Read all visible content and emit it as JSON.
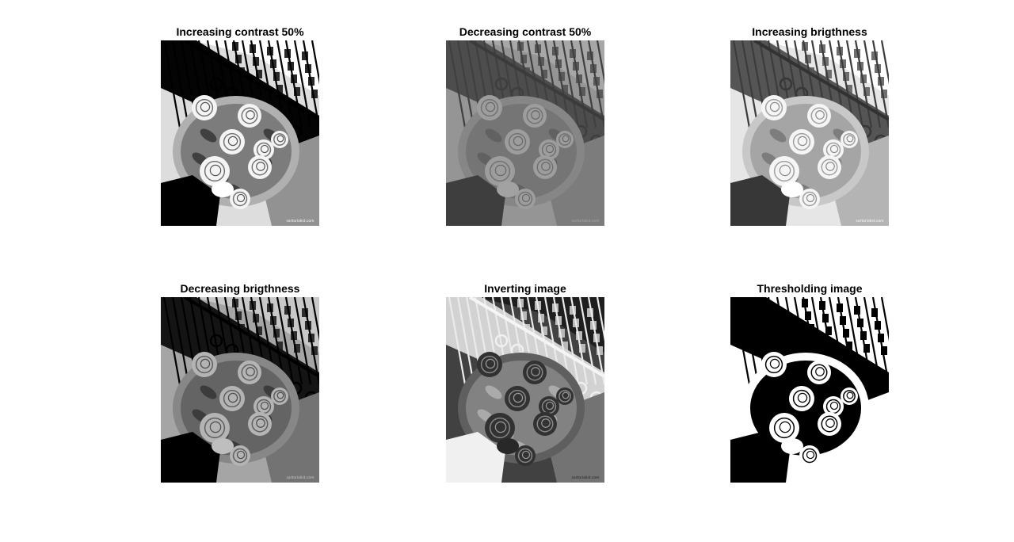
{
  "figure": {
    "panels": [
      {
        "title": "Increasing contrast 50%",
        "mode": "high-contrast",
        "watermark": "sartorialist.com"
      },
      {
        "title": "Decreasing contrast 50%",
        "mode": "low-contrast",
        "watermark": "sartorialist.com"
      },
      {
        "title": "Increasing brigthness",
        "mode": "bright",
        "watermark": "sartorialist.com"
      },
      {
        "title": "Decreasing brigthness",
        "mode": "dark",
        "watermark": "sartorialist.com"
      },
      {
        "title": "Inverting image",
        "mode": "inverted",
        "watermark": "sartorialist.com"
      },
      {
        "title": "Thresholding image",
        "mode": "threshold",
        "watermark": "sartorialist.com"
      }
    ]
  }
}
